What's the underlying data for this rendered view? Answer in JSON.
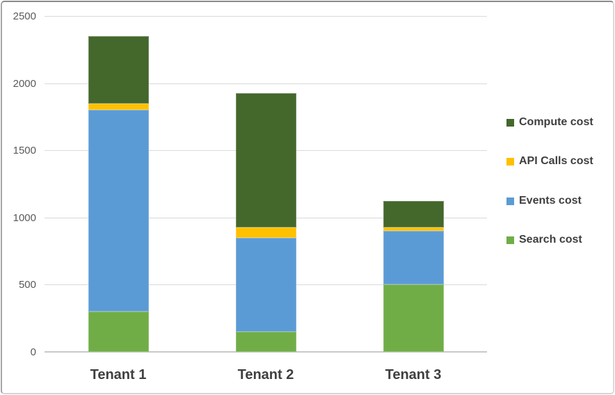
{
  "chart_data": {
    "type": "bar",
    "variant": "stacked-column",
    "title": "",
    "xlabel": "",
    "ylabel": "",
    "categories": [
      "Tenant 1",
      "Tenant 2",
      "Tenant 3"
    ],
    "series": [
      {
        "name": "Search cost",
        "color": "#70AD47",
        "values": [
          300,
          150,
          500
        ]
      },
      {
        "name": "Events cost",
        "color": "#5B9BD5",
        "values": [
          1500,
          700,
          400
        ]
      },
      {
        "name": "API Calls cost",
        "color": "#FFC000",
        "values": [
          50,
          75,
          25
        ]
      },
      {
        "name": "Compute cost",
        "color": "#44672C",
        "values": [
          500,
          1000,
          200
        ]
      }
    ],
    "totals": [
      2350,
      1925,
      1125
    ],
    "y_axis": {
      "min": 0,
      "max": 2500,
      "tick_interval": 500,
      "tick_labels": [
        "0",
        "500",
        "1000",
        "1500",
        "2000",
        "2500"
      ]
    },
    "grid": true,
    "legend": {
      "position": "right",
      "entries_top_to_bottom": [
        "Compute cost",
        "API Calls cost",
        "Events cost",
        "Search cost"
      ]
    }
  },
  "styles": {
    "background": "#FFFFFF",
    "gridline_color": "#D9D9D9",
    "axis_line_color": "#C9C9C9",
    "tick_label_color": "#595959",
    "category_label_color": "#3F3F3F",
    "legend_text_color": "#3F3F3F"
  }
}
